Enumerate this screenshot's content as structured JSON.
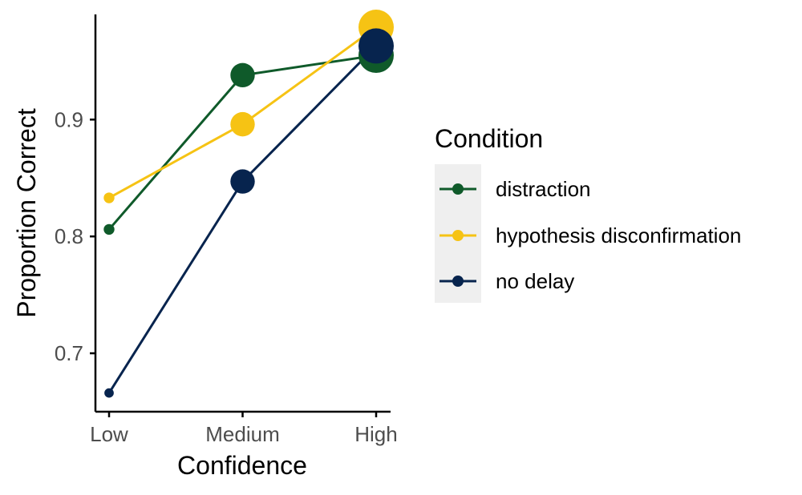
{
  "chart_data": {
    "type": "line",
    "xlabel": "Confidence",
    "ylabel": "Proportion Correct",
    "categories": [
      "Low",
      "Medium",
      "High"
    ],
    "ylim": [
      0.65,
      0.99
    ],
    "yticks": [
      0.7,
      0.8,
      0.9
    ],
    "grid": false,
    "legend": {
      "title": "Condition",
      "placement": "right"
    },
    "series": [
      {
        "name": "distraction",
        "color": "#0f5a2a",
        "values": [
          0.806,
          0.938,
          0.955
        ],
        "point_weight": [
          0.1,
          0.6,
          1.0
        ]
      },
      {
        "name": "hypothesis disconfirmation",
        "color": "#f6c314",
        "values": [
          0.833,
          0.896,
          0.979
        ],
        "point_weight": [
          0.1,
          0.6,
          1.0
        ]
      },
      {
        "name": "no delay",
        "color": "#07244e",
        "values": [
          0.666,
          0.847,
          0.963
        ],
        "point_weight": [
          0.05,
          0.6,
          1.0
        ]
      }
    ]
  }
}
